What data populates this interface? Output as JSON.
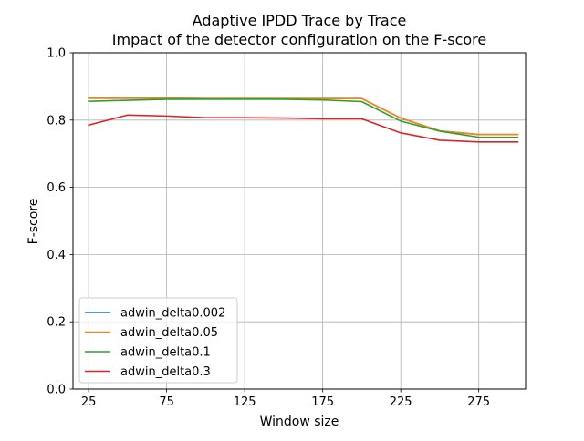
{
  "chart_data": {
    "type": "line",
    "title": "Adaptive IPDD Trace by Trace",
    "subtitle": "Impact of the detector configuration on the F-score",
    "xlabel": "Window size",
    "ylabel": "F-score",
    "xlim": [
      15,
      305
    ],
    "ylim": [
      0.0,
      1.0
    ],
    "xticks": [
      25,
      75,
      125,
      175,
      225,
      275
    ],
    "xtick_labels": [
      "25",
      "75",
      "125",
      "175",
      "225",
      "275"
    ],
    "yticks": [
      0.0,
      0.2,
      0.4,
      0.6,
      0.8,
      1.0
    ],
    "ytick_labels": [
      "0.0",
      "0.2",
      "0.4",
      "0.6",
      "0.8",
      "1.0"
    ],
    "grid": true,
    "legend_position": "lower-left",
    "x": [
      25,
      50,
      75,
      100,
      125,
      150,
      175,
      200,
      225,
      250,
      275,
      300
    ],
    "series": [
      {
        "name": "adwin_delta0.002",
        "color": "#1f77b4",
        "values": [
          0.865,
          0.865,
          0.865,
          0.864,
          0.864,
          0.864,
          0.864,
          0.864,
          0.806,
          0.768,
          0.757,
          0.757
        ]
      },
      {
        "name": "adwin_delta0.05",
        "color": "#ff7f0e",
        "values": [
          0.865,
          0.865,
          0.865,
          0.864,
          0.864,
          0.864,
          0.864,
          0.864,
          0.806,
          0.768,
          0.757,
          0.757
        ]
      },
      {
        "name": "adwin_delta0.1",
        "color": "#2ca02c",
        "values": [
          0.856,
          0.859,
          0.862,
          0.862,
          0.862,
          0.862,
          0.86,
          0.855,
          0.797,
          0.767,
          0.749,
          0.749
        ]
      },
      {
        "name": "adwin_delta0.3",
        "color": "#d62728",
        "values": [
          0.785,
          0.815,
          0.812,
          0.807,
          0.807,
          0.806,
          0.804,
          0.804,
          0.762,
          0.74,
          0.735,
          0.735
        ]
      }
    ]
  }
}
